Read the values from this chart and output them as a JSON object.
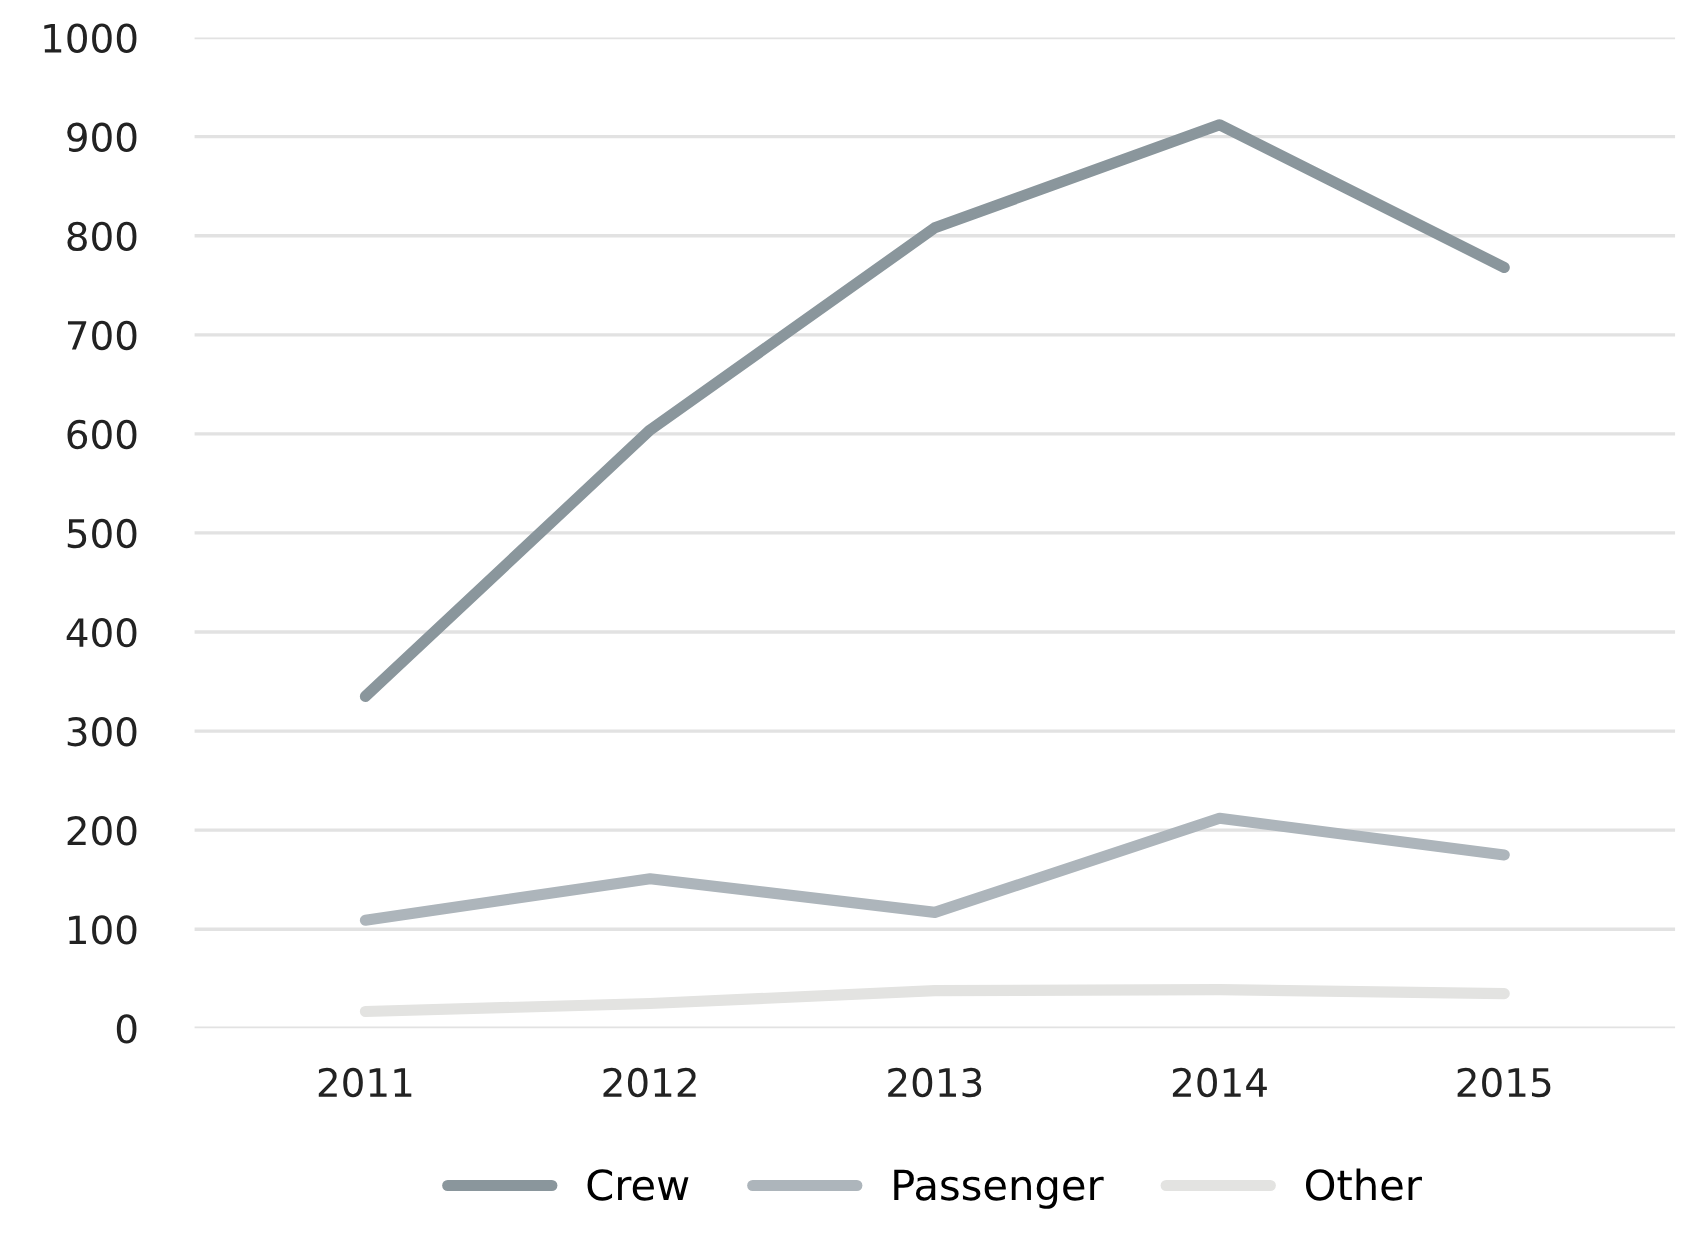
{
  "chart_data": {
    "type": "line",
    "categories": [
      "2011",
      "2012",
      "2013",
      "2014",
      "2015"
    ],
    "series": [
      {
        "name": "Crew",
        "color": "#8a969c",
        "values": [
          335,
          604,
          808,
          912,
          768
        ]
      },
      {
        "name": "Passenger",
        "color": "#adb5bb",
        "values": [
          109,
          151,
          117,
          212,
          175
        ]
      },
      {
        "name": "Other",
        "color": "#e3e3e1",
        "values": [
          17,
          25,
          38,
          39,
          35
        ]
      }
    ],
    "ylim": [
      0,
      1000
    ],
    "yticks": [
      0,
      100,
      200,
      300,
      400,
      500,
      600,
      700,
      800,
      900,
      1000
    ],
    "grid": "y",
    "legend": "bottom",
    "marker": "none",
    "line_style": "solid"
  }
}
